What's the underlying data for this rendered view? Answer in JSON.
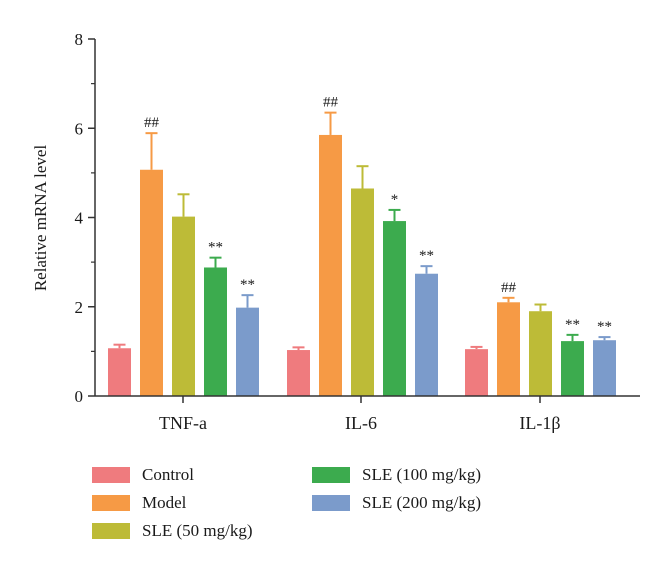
{
  "chart_data": {
    "type": "bar",
    "ylabel": "Relative mRNA level",
    "xlabel": "",
    "title": "",
    "ylim": [
      0,
      8
    ],
    "yticks": [
      "0",
      "2",
      "4",
      "6",
      "8"
    ],
    "grid": false,
    "legend_position": "bottom",
    "categories": [
      "TNF-a",
      "IL-6",
      "IL-1β"
    ],
    "series": [
      {
        "name": "Control",
        "color": "#ef7b7e",
        "values": [
          1.07,
          1.03,
          1.05
        ],
        "errors": [
          0.08,
          0.06,
          0.05
        ],
        "marks": [
          "",
          "",
          ""
        ]
      },
      {
        "name": "Model",
        "color": "#f69a45",
        "values": [
          5.07,
          5.85,
          2.1
        ],
        "errors": [
          0.82,
          0.5,
          0.1
        ],
        "marks": [
          "##",
          "##",
          "##"
        ]
      },
      {
        "name": "SLE (50 mg/kg)",
        "color": "#bdbb37",
        "values": [
          4.02,
          4.65,
          1.9
        ],
        "errors": [
          0.5,
          0.5,
          0.15
        ],
        "marks": [
          "",
          "",
          ""
        ]
      },
      {
        "name": "SLE (100 mg/kg)",
        "color": "#3cab4e",
        "values": [
          2.88,
          3.92,
          1.23
        ],
        "errors": [
          0.22,
          0.25,
          0.14
        ],
        "marks": [
          "**",
          "*",
          "**"
        ]
      },
      {
        "name": "SLE (200 mg/kg)",
        "color": "#7b9bcb",
        "values": [
          1.98,
          2.74,
          1.25
        ],
        "errors": [
          0.28,
          0.17,
          0.07
        ],
        "marks": [
          "**",
          "**",
          "**"
        ]
      }
    ]
  }
}
